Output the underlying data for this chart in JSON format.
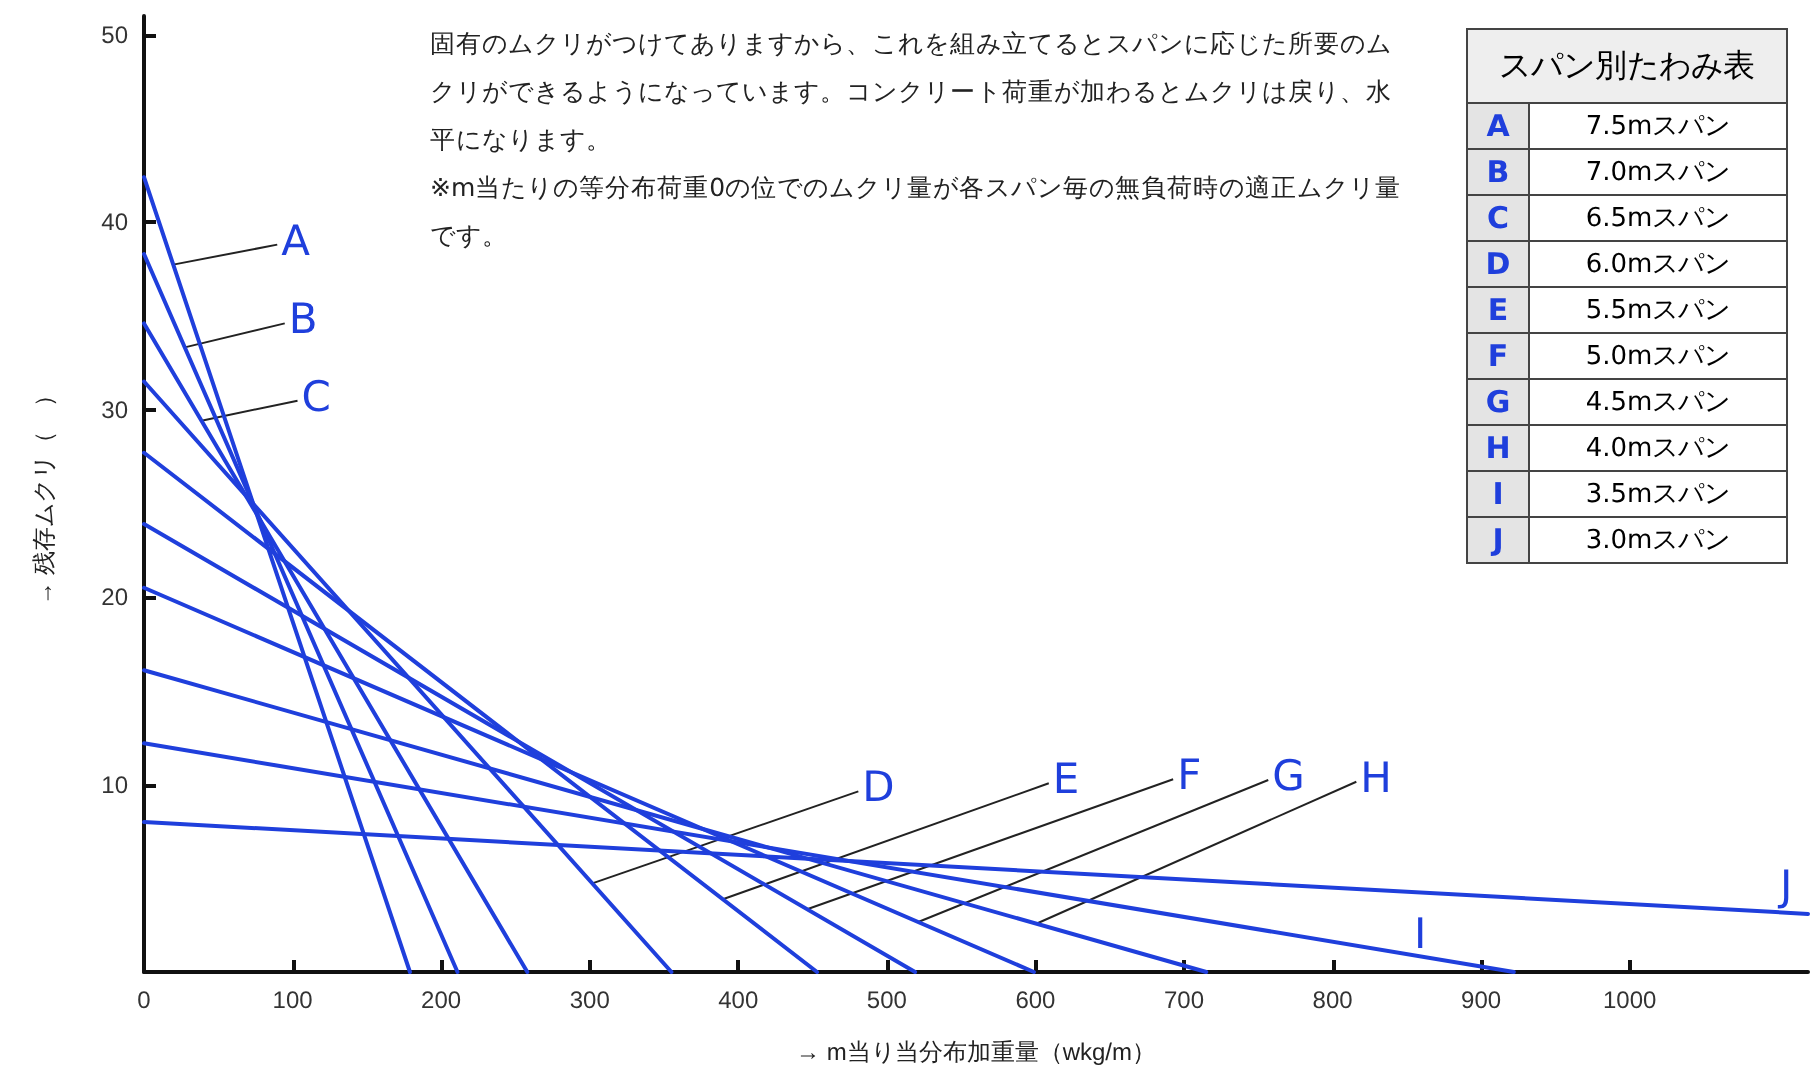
{
  "chart_data": {
    "type": "line",
    "xlabel": "→ m当り当分布加重量（wkg/m）",
    "ylabel": "→ 残存ムクリ（　）",
    "xlim": [
      0,
      1120
    ],
    "xticks": [
      0,
      100,
      200,
      300,
      400,
      500,
      600,
      700,
      800,
      900,
      1000
    ],
    "ylim": [
      0,
      51
    ],
    "yticks": [
      10,
      20,
      30,
      40,
      50
    ],
    "grid": false,
    "legend": false,
    "marker": "none",
    "line_style": "solid",
    "series": [
      {
        "name": "A",
        "color": "#1f3fdc",
        "x": [
          0,
          179
        ],
        "values": [
          42.4,
          0
        ]
      },
      {
        "name": "B",
        "color": "#1f3fdc",
        "x": [
          0,
          211
        ],
        "values": [
          38.3,
          0
        ]
      },
      {
        "name": "C",
        "color": "#1f3fdc",
        "x": [
          0,
          258
        ],
        "values": [
          34.6,
          0
        ]
      },
      {
        "name": "D",
        "color": "#1f3fdc",
        "x": [
          0,
          355
        ],
        "values": [
          31.5,
          0
        ]
      },
      {
        "name": "E",
        "color": "#1f3fdc",
        "x": [
          0,
          453
        ],
        "values": [
          27.7,
          0
        ]
      },
      {
        "name": "F",
        "color": "#1f3fdc",
        "x": [
          0,
          519
        ],
        "values": [
          23.9,
          0
        ]
      },
      {
        "name": "G",
        "color": "#1f3fdc",
        "x": [
          0,
          599
        ],
        "values": [
          20.5,
          0
        ]
      },
      {
        "name": "H",
        "color": "#1f3fdc",
        "x": [
          0,
          715
        ],
        "values": [
          16.1,
          0
        ]
      },
      {
        "name": "I",
        "color": "#1f3fdc",
        "x": [
          0,
          922
        ],
        "values": [
          12.2,
          0
        ]
      },
      {
        "name": "J",
        "color": "#1f3fdc",
        "x": [
          0,
          1120
        ],
        "values": [
          8.0,
          3.1
        ]
      }
    ],
    "annotations": [
      "固有のムクリがつけてありますから、これを組み立てるとスパンに応じた所要のムクリができるようになっています。コンクリート荷重が加わるとムクリは戻り、水平になります。",
      "※m当たりの等分布荷重0の位でのムクリ量が各スパン毎の無負荷時の適正ムクリ量です。",
      "スパン別たわみ表",
      "7.5mスパン",
      "7.0mスパン",
      "6.5mスパン",
      "6.0mスパン",
      "5.5mスパン",
      "5.0mスパン",
      "4.5mスパン",
      "4.0mスパン",
      "3.5mスパン",
      "3.0mスパン"
    ]
  }
}
